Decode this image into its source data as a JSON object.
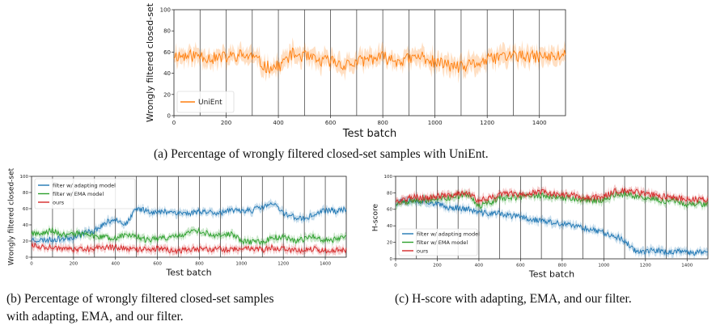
{
  "colors": {
    "unient": "#ff7f0e",
    "adapting": "#1f77b4",
    "ema": "#2ca02c",
    "ours": "#d62728"
  },
  "captions": {
    "a": "(a)  Percentage of wrongly filtered closed-set samples with UniEnt.",
    "b_line1": "(b)  Percentage of wrongly filtered closed-set samples",
    "b_line2": "with adapting, EMA, and our filter.",
    "c": "(c)  H-score with adapting, EMA, and our filter."
  },
  "chart_data": [
    {
      "id": "a",
      "type": "line",
      "xlabel": "Test batch",
      "ylabel": "Wrongly filtered closed-set",
      "xlim": [
        0,
        1500
      ],
      "ylim": [
        0,
        100
      ],
      "xticks": [
        0,
        200,
        400,
        600,
        800,
        1000,
        1200,
        1400
      ],
      "yticks": [
        0,
        20,
        40,
        60,
        80,
        100
      ],
      "domain_boundaries": [
        100,
        200,
        300,
        400,
        500,
        600,
        700,
        800,
        900,
        1000,
        1100,
        1200,
        1300,
        1400
      ],
      "legend_position": "lower-left",
      "series": [
        {
          "name": "UniEnt",
          "color": "#ff7f0e",
          "x": [
            0,
            50,
            100,
            150,
            200,
            250,
            300,
            350,
            400,
            450,
            500,
            550,
            600,
            650,
            700,
            750,
            800,
            850,
            900,
            950,
            1000,
            1050,
            1100,
            1150,
            1200,
            1250,
            1300,
            1350,
            1400,
            1450,
            1500
          ],
          "values": [
            57,
            56,
            57,
            54,
            55,
            57,
            56,
            46,
            46,
            58,
            56,
            51,
            52,
            48,
            50,
            54,
            55,
            52,
            53,
            56,
            50,
            48,
            45,
            49,
            52,
            56,
            57,
            55,
            56,
            55,
            58
          ]
        }
      ]
    },
    {
      "id": "b",
      "type": "line",
      "xlabel": "Test batch",
      "ylabel": "Wrongly filtered closed-set",
      "xlim": [
        0,
        1500
      ],
      "ylim": [
        0,
        100
      ],
      "xticks": [
        0,
        200,
        400,
        600,
        800,
        1000,
        1200,
        1400
      ],
      "yticks": [
        0,
        20,
        40,
        60,
        80,
        100
      ],
      "domain_boundaries": [
        100,
        200,
        300,
        400,
        500,
        600,
        700,
        800,
        900,
        1000,
        1100,
        1200,
        1300,
        1400
      ],
      "legend_position": "upper-left",
      "series": [
        {
          "name": "filter w/ adapting model",
          "color": "#1f77b4",
          "x": [
            0,
            50,
            100,
            150,
            200,
            250,
            300,
            350,
            400,
            450,
            500,
            550,
            600,
            650,
            700,
            750,
            800,
            850,
            900,
            950,
            1000,
            1050,
            1100,
            1150,
            1200,
            1250,
            1300,
            1350,
            1400,
            1450,
            1500
          ],
          "values": [
            22,
            21,
            22,
            23,
            25,
            30,
            33,
            42,
            48,
            40,
            60,
            58,
            55,
            57,
            55,
            54,
            57,
            56,
            55,
            57,
            58,
            58,
            62,
            66,
            55,
            50,
            47,
            53,
            58,
            57,
            59
          ]
        },
        {
          "name": "filter w/ EMA model",
          "color": "#2ca02c",
          "x": [
            0,
            50,
            100,
            150,
            200,
            250,
            300,
            350,
            400,
            450,
            500,
            550,
            600,
            650,
            700,
            750,
            800,
            850,
            900,
            950,
            1000,
            1050,
            1100,
            1150,
            1200,
            1250,
            1300,
            1350,
            1400,
            1450,
            1500
          ],
          "values": [
            30,
            29,
            33,
            28,
            30,
            28,
            26,
            25,
            24,
            28,
            26,
            21,
            23,
            24,
            26,
            30,
            32,
            28,
            26,
            29,
            20,
            19,
            19,
            24,
            26,
            20,
            22,
            27,
            20,
            22,
            26
          ]
        },
        {
          "name": "ours",
          "color": "#d62728",
          "x": [
            0,
            50,
            100,
            150,
            200,
            250,
            300,
            350,
            400,
            450,
            500,
            550,
            600,
            650,
            700,
            750,
            800,
            850,
            900,
            950,
            1000,
            1050,
            1100,
            1150,
            1200,
            1250,
            1300,
            1350,
            1400,
            1450,
            1500
          ],
          "values": [
            14,
            13,
            12,
            11,
            10,
            10,
            11,
            12,
            12,
            11,
            10,
            10,
            11,
            9,
            8,
            9,
            10,
            10,
            10,
            9,
            11,
            10,
            9,
            12,
            10,
            8,
            9,
            10,
            8,
            9,
            9
          ]
        }
      ]
    },
    {
      "id": "c",
      "type": "line",
      "xlabel": "Test batch",
      "ylabel": "H-score",
      "xlim": [
        0,
        1500
      ],
      "ylim": [
        0,
        100
      ],
      "xticks": [
        0,
        200,
        400,
        600,
        800,
        1000,
        1200,
        1400
      ],
      "yticks": [
        0,
        20,
        40,
        60,
        80,
        100
      ],
      "domain_boundaries": [
        100,
        200,
        300,
        400,
        500,
        600,
        700,
        800,
        900,
        1000,
        1100,
        1200,
        1300,
        1400
      ],
      "legend_position": "lower-left",
      "series": [
        {
          "name": "filter w/ adapting model",
          "color": "#1f77b4",
          "x": [
            0,
            50,
            100,
            150,
            200,
            250,
            300,
            350,
            400,
            450,
            500,
            550,
            600,
            650,
            700,
            750,
            800,
            850,
            900,
            950,
            1000,
            1050,
            1100,
            1150,
            1200,
            1250,
            1300,
            1350,
            1400,
            1450,
            1500
          ],
          "values": [
            68,
            72,
            70,
            70,
            66,
            62,
            62,
            60,
            56,
            55,
            55,
            52,
            51,
            48,
            46,
            44,
            42,
            40,
            38,
            35,
            32,
            28,
            22,
            10,
            9,
            10,
            8,
            9,
            7,
            8,
            9
          ]
        },
        {
          "name": "filter w/ EMA model",
          "color": "#2ca02c",
          "x": [
            0,
            50,
            100,
            150,
            200,
            250,
            300,
            350,
            400,
            450,
            500,
            550,
            600,
            650,
            700,
            750,
            800,
            850,
            900,
            950,
            1000,
            1050,
            1100,
            1150,
            1200,
            1250,
            1300,
            1350,
            1400,
            1450,
            1500
          ],
          "values": [
            66,
            68,
            70,
            71,
            73,
            74,
            76,
            77,
            64,
            68,
            73,
            75,
            74,
            76,
            77,
            75,
            74,
            74,
            72,
            70,
            72,
            78,
            78,
            76,
            74,
            72,
            70,
            70,
            66,
            67,
            66
          ]
        },
        {
          "name": "ours",
          "color": "#d62728",
          "x": [
            0,
            50,
            100,
            150,
            200,
            250,
            300,
            350,
            400,
            450,
            500,
            550,
            600,
            650,
            700,
            750,
            800,
            850,
            900,
            950,
            1000,
            1050,
            1100,
            1150,
            1200,
            1250,
            1300,
            1350,
            1400,
            1450,
            1500
          ],
          "values": [
            70,
            73,
            75,
            74,
            76,
            77,
            78,
            80,
            70,
            74,
            78,
            79,
            78,
            80,
            81,
            79,
            78,
            77,
            75,
            74,
            76,
            82,
            83,
            81,
            79,
            77,
            75,
            74,
            72,
            72,
            72
          ]
        }
      ]
    }
  ]
}
